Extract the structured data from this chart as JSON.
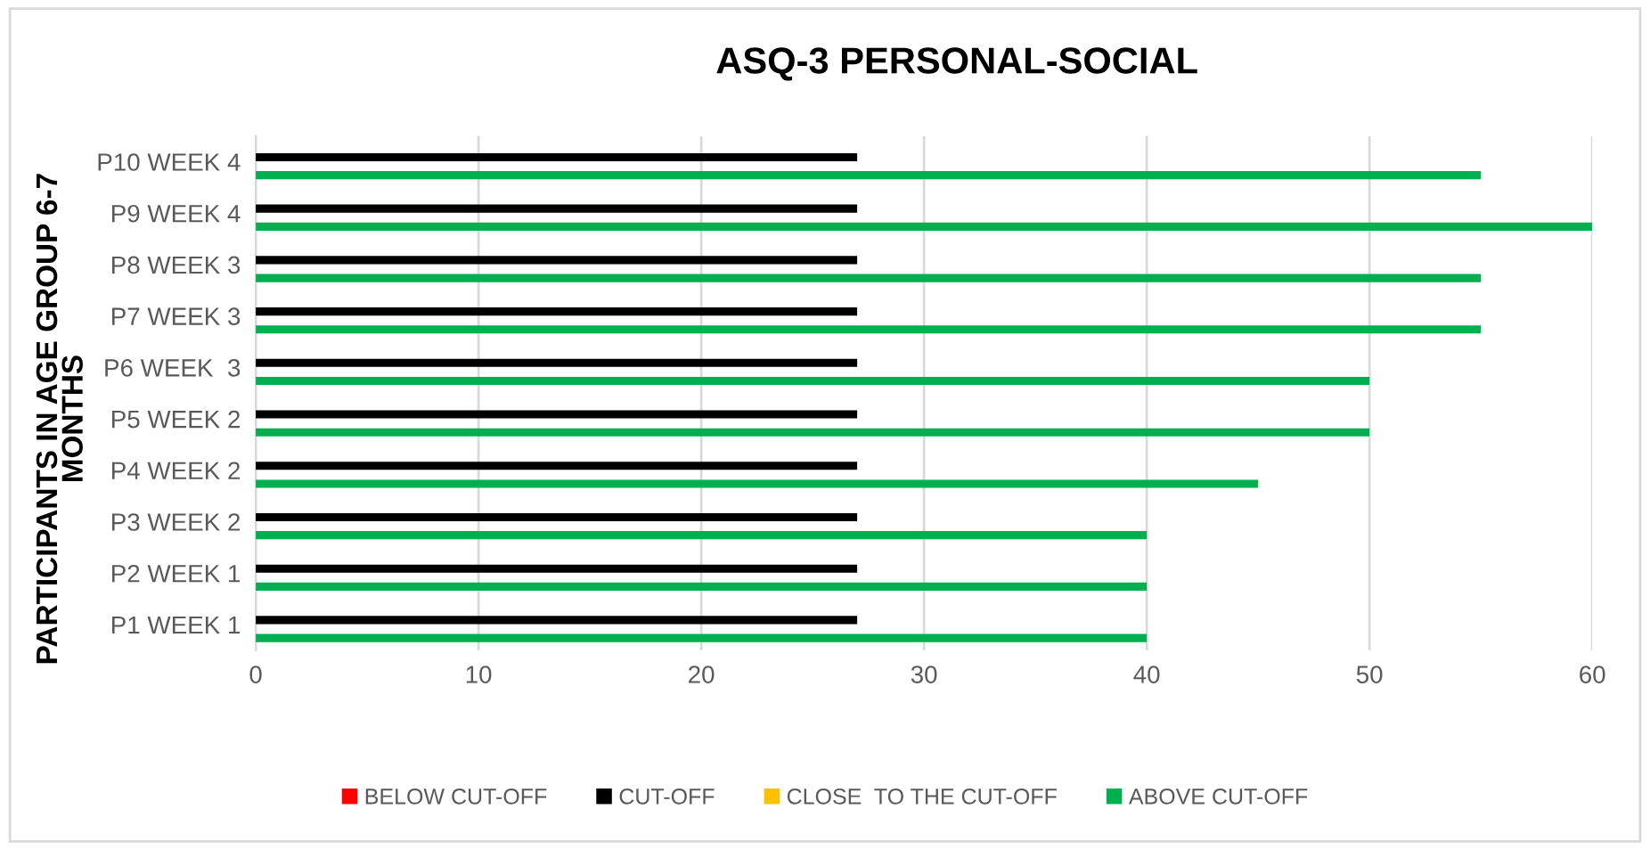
{
  "chart_data": {
    "type": "bar",
    "orientation": "horizontal",
    "title": "ASQ-3 PERSONAL-SOCIAL",
    "ylabel": "PARTICIPANTS IN AGE GROUP 6-7\nMONTHS",
    "categories": [
      "P10 WEEK 4",
      "P9 WEEK 4",
      "P8 WEEK 3",
      "P7 WEEK 3",
      "P6 WEEK  3",
      "P5 WEEK 2",
      "P4 WEEK 2",
      "P3 WEEK 2",
      "P2 WEEK 1",
      "P1 WEEK 1"
    ],
    "series": [
      {
        "name": "BELOW CUT-OFF",
        "color": "#ff0000",
        "values": [
          null,
          null,
          null,
          null,
          null,
          null,
          null,
          null,
          null,
          null
        ]
      },
      {
        "name": "CUT-OFF",
        "color": "#000000",
        "values": [
          27,
          27,
          27,
          27,
          27,
          27,
          27,
          27,
          27,
          27
        ]
      },
      {
        "name": "CLOSE  TO THE CUT-OFF",
        "color": "#ffc000",
        "values": [
          null,
          null,
          null,
          null,
          null,
          null,
          null,
          null,
          null,
          null
        ]
      },
      {
        "name": "ABOVE CUT-OFF",
        "color": "#00b050",
        "values": [
          55,
          60,
          55,
          55,
          50,
          50,
          45,
          40,
          40,
          40
        ]
      }
    ],
    "xlim": [
      0,
      60
    ],
    "xticks": [
      0,
      10,
      20,
      30,
      40,
      50,
      60
    ],
    "grid": "x",
    "legend": "bottom"
  }
}
